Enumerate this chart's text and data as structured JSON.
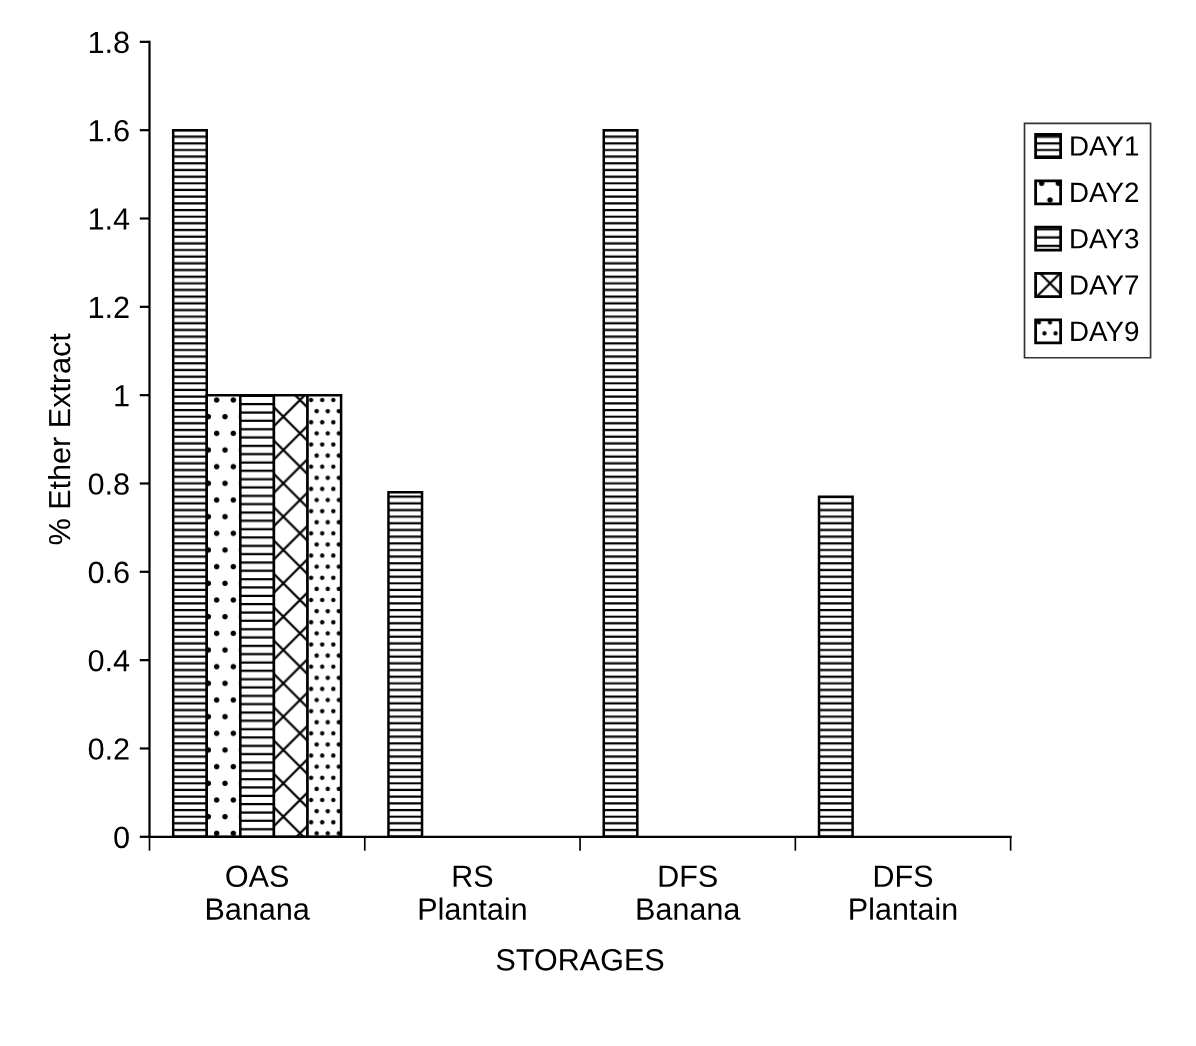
{
  "chart_data": {
    "type": "bar",
    "xlabel": "STORAGES",
    "ylabel": "% Ether Extract",
    "categories": [
      "OAS\nBanana",
      "RS\nPlantain",
      "DFS\nBanana",
      "DFS\nPlantain"
    ],
    "series": [
      {
        "name": "DAY1",
        "color": "#000000",
        "values": [
          1.6,
          0.78,
          1.6,
          0.77
        ]
      },
      {
        "name": "DAY2",
        "color": "#000000",
        "values": [
          1.0,
          0,
          0,
          0
        ]
      },
      {
        "name": "DAY3",
        "color": "#000000",
        "values": [
          1.0,
          0,
          0,
          0
        ]
      },
      {
        "name": "DAY7",
        "color": "#000000",
        "values": [
          1.0,
          0,
          0,
          0
        ]
      },
      {
        "name": "DAY9",
        "color": "#000000",
        "values": [
          1.0,
          0,
          0,
          0
        ]
      }
    ],
    "ylim": [
      0,
      1.8
    ],
    "yticks": [
      0,
      0.2,
      0.4,
      0.6,
      0.8,
      1,
      1.2,
      1.4,
      1.6,
      1.8
    ],
    "grid": false,
    "legend": "right"
  }
}
